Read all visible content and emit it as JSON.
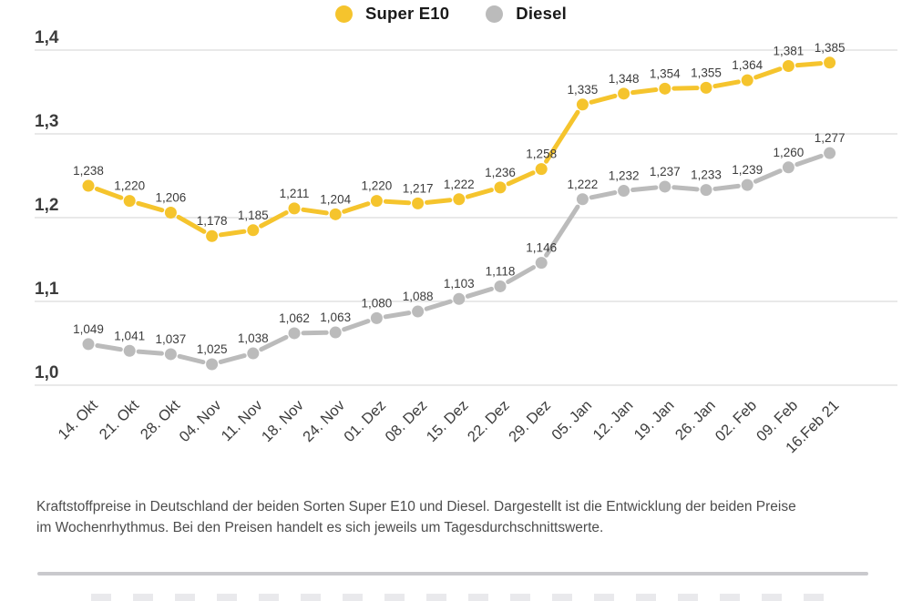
{
  "legend": {
    "items": [
      {
        "label": "Super E10",
        "color": "#F5C42D"
      },
      {
        "label": "Diesel",
        "color": "#BBBBBB"
      }
    ]
  },
  "chart_data": {
    "type": "line",
    "categories": [
      "14. Okt",
      "21. Okt",
      "28. Okt",
      "04. Nov",
      "11. Nov",
      "18. Nov",
      "24. Nov",
      "01. Dez",
      "08. Dez",
      "15. Dez",
      "22. Dez",
      "29. Dez",
      "05. Jan",
      "12. Jan",
      "19. Jan",
      "26. Jan",
      "02. Feb",
      "09. Feb",
      "16.Feb 21"
    ],
    "series": [
      {
        "name": "Diesel",
        "color": "#BBBBBB",
        "values": [
          1.049,
          1.041,
          1.037,
          1.025,
          1.038,
          1.062,
          1.063,
          1.08,
          1.088,
          1.103,
          1.118,
          1.146,
          1.222,
          1.232,
          1.237,
          1.233,
          1.239,
          1.26,
          1.277
        ]
      },
      {
        "name": "Super E10",
        "color": "#F5C42D",
        "values": [
          1.238,
          1.22,
          1.206,
          1.178,
          1.185,
          1.211,
          1.204,
          1.22,
          1.217,
          1.222,
          1.236,
          1.258,
          1.335,
          1.348,
          1.354,
          1.355,
          1.364,
          1.381,
          1.385
        ]
      }
    ],
    "y_ticks": [
      1.4,
      1.3,
      1.2,
      1.1,
      1.0
    ],
    "y_tick_labels": [
      "1,4",
      "1,3",
      "1,2",
      "1,1",
      "1,0"
    ],
    "ylim": [
      1.0,
      1.4
    ],
    "grid": true,
    "data_labels": true,
    "decimal_format": "comma",
    "legend_position": "top-center"
  },
  "caption": {
    "text": "Kraftstoffpreise in Deutschland der beiden Sorten Super E10 und Diesel. Dargestellt ist die Entwicklung der beiden Preise im Wochenrhythmus. Bei den Preisen handelt es sich jeweils um Tagesdurchschnittswerte."
  },
  "colors": {
    "grid": "#DCDCDC",
    "axis_text": "#3C3C3C",
    "data_label_text": "#3C3C3C",
    "caption_text": "#4D4D4D",
    "divider": "#C9C9CD"
  }
}
